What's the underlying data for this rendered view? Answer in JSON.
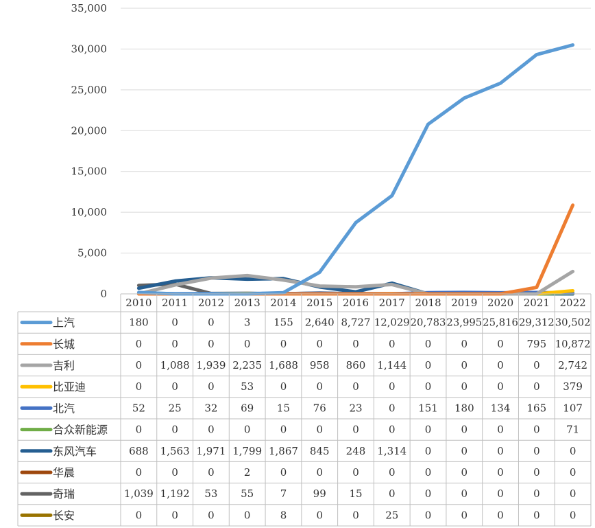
{
  "chart_data": {
    "type": "line",
    "title": "",
    "xlabel": "",
    "ylabel": "",
    "ylim": [
      0,
      35000
    ],
    "yticks": [
      "0",
      "5,000",
      "10,000",
      "15,000",
      "20,000",
      "25,000",
      "30,000",
      "35,000"
    ],
    "grid": true,
    "legend": "data-table",
    "categories": [
      "2010",
      "2011",
      "2012",
      "2013",
      "2014",
      "2015",
      "2016",
      "2017",
      "2018",
      "2019",
      "2020",
      "2021",
      "2022"
    ],
    "series": [
      {
        "name": "上汽",
        "color": "#5b9bd5",
        "values": [
          180,
          0,
          0,
          3,
          155,
          2640,
          8727,
          12029,
          20783,
          23995,
          25816,
          29312,
          30502
        ],
        "labels": [
          "180",
          "0",
          "0",
          "3",
          "155",
          "2,640",
          "8,727",
          "12,029",
          "20,783",
          "23,995",
          "25,816",
          "29,312",
          "30,502"
        ]
      },
      {
        "name": "长城",
        "color": "#ed7d31",
        "values": [
          0,
          0,
          0,
          0,
          0,
          0,
          0,
          0,
          0,
          0,
          0,
          795,
          10872
        ],
        "labels": [
          "0",
          "0",
          "0",
          "0",
          "0",
          "0",
          "0",
          "0",
          "0",
          "0",
          "0",
          "795",
          "10,872"
        ]
      },
      {
        "name": "吉利",
        "color": "#a5a5a5",
        "values": [
          0,
          1088,
          1939,
          2235,
          1688,
          958,
          860,
          1144,
          0,
          0,
          0,
          0,
          2742
        ],
        "labels": [
          "0",
          "1,088",
          "1,939",
          "2,235",
          "1,688",
          "958",
          "860",
          "1,144",
          "0",
          "0",
          "0",
          "0",
          "2,742"
        ]
      },
      {
        "name": "比亚迪",
        "color": "#ffc000",
        "values": [
          0,
          0,
          0,
          53,
          0,
          0,
          0,
          0,
          0,
          0,
          0,
          0,
          379
        ],
        "labels": [
          "0",
          "0",
          "0",
          "53",
          "0",
          "0",
          "0",
          "0",
          "0",
          "0",
          "0",
          "0",
          "379"
        ]
      },
      {
        "name": "北汽",
        "color": "#4472c4",
        "values": [
          52,
          25,
          32,
          69,
          15,
          76,
          23,
          0,
          151,
          180,
          134,
          165,
          107
        ],
        "labels": [
          "52",
          "25",
          "32",
          "69",
          "15",
          "76",
          "23",
          "0",
          "151",
          "180",
          "134",
          "165",
          "107"
        ]
      },
      {
        "name": "合众新能源",
        "color": "#70ad47",
        "values": [
          0,
          0,
          0,
          0,
          0,
          0,
          0,
          0,
          0,
          0,
          0,
          0,
          71
        ],
        "labels": [
          "0",
          "0",
          "0",
          "0",
          "0",
          "0",
          "0",
          "0",
          "0",
          "0",
          "0",
          "0",
          "71"
        ]
      },
      {
        "name": "东风汽车",
        "color": "#255e91",
        "values": [
          688,
          1563,
          1971,
          1799,
          1867,
          845,
          248,
          1314,
          0,
          0,
          0,
          0,
          0
        ],
        "labels": [
          "688",
          "1,563",
          "1,971",
          "1,799",
          "1,867",
          "845",
          "248",
          "1,314",
          "0",
          "0",
          "0",
          "0",
          "0"
        ]
      },
      {
        "name": "华晨",
        "color": "#9e480e",
        "values": [
          0,
          0,
          0,
          2,
          0,
          0,
          0,
          0,
          0,
          0,
          0,
          0,
          0
        ],
        "labels": [
          "0",
          "0",
          "0",
          "2",
          "0",
          "0",
          "0",
          "0",
          "0",
          "0",
          "0",
          "0",
          "0"
        ]
      },
      {
        "name": "奇瑞",
        "color": "#636363",
        "values": [
          1039,
          1192,
          53,
          55,
          7,
          99,
          15,
          0,
          0,
          0,
          0,
          0,
          0
        ],
        "labels": [
          "1,039",
          "1,192",
          "53",
          "55",
          "7",
          "99",
          "15",
          "0",
          "0",
          "0",
          "0",
          "0",
          "0"
        ]
      },
      {
        "name": "长安",
        "color": "#997300",
        "values": [
          0,
          0,
          0,
          0,
          8,
          0,
          0,
          25,
          0,
          0,
          0,
          0,
          0
        ],
        "labels": [
          "0",
          "0",
          "0",
          "0",
          "8",
          "0",
          "0",
          "25",
          "0",
          "0",
          "0",
          "0",
          "0"
        ]
      }
    ]
  }
}
